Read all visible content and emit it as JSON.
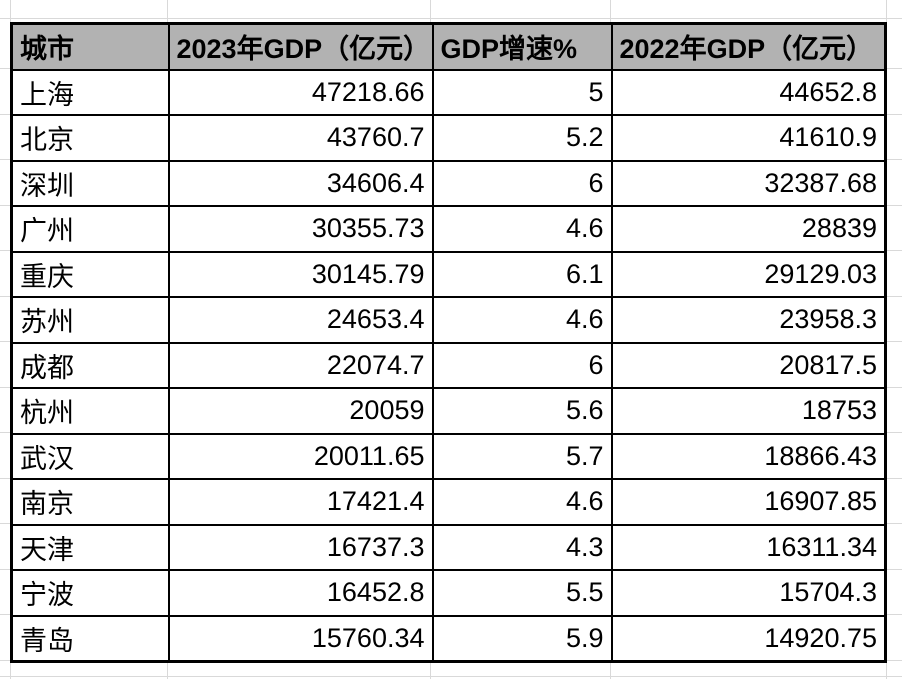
{
  "table": {
    "columns": [
      {
        "key": "city",
        "label": "城市"
      },
      {
        "key": "gdp2023",
        "label": "2023年GDP（亿元）"
      },
      {
        "key": "growth",
        "label": "GDP增速%"
      },
      {
        "key": "gdp2022",
        "label": "2022年GDP（亿元）"
      }
    ],
    "rows": [
      {
        "city": "上海",
        "gdp2023": "47218.66",
        "growth": "5",
        "gdp2022": "44652.8"
      },
      {
        "city": "北京",
        "gdp2023": "43760.7",
        "growth": "5.2",
        "gdp2022": "41610.9"
      },
      {
        "city": "深圳",
        "gdp2023": "34606.4",
        "growth": "6",
        "gdp2022": "32387.68"
      },
      {
        "city": "广州",
        "gdp2023": "30355.73",
        "growth": "4.6",
        "gdp2022": "28839"
      },
      {
        "city": "重庆",
        "gdp2023": "30145.79",
        "growth": "6.1",
        "gdp2022": "29129.03"
      },
      {
        "city": "苏州",
        "gdp2023": "24653.4",
        "growth": "4.6",
        "gdp2022": "23958.3"
      },
      {
        "city": "成都",
        "gdp2023": "22074.7",
        "growth": "6",
        "gdp2022": "20817.5"
      },
      {
        "city": "杭州",
        "gdp2023": "20059",
        "growth": "5.6",
        "gdp2022": "18753"
      },
      {
        "city": "武汉",
        "gdp2023": "20011.65",
        "growth": "5.7",
        "gdp2022": "18866.43"
      },
      {
        "city": "南京",
        "gdp2023": "17421.4",
        "growth": "4.6",
        "gdp2022": "16907.85"
      },
      {
        "city": "天津",
        "gdp2023": "16737.3",
        "growth": "4.3",
        "gdp2022": "16311.34"
      },
      {
        "city": "宁波",
        "gdp2023": "16452.8",
        "growth": "5.5",
        "gdp2022": "15704.3"
      },
      {
        "city": "青岛",
        "gdp2023": "15760.34",
        "growth": "5.9",
        "gdp2022": "14920.75"
      }
    ],
    "colors": {
      "header_bg": "#b2b2b2",
      "cell_border": "#000000",
      "gridline": "#d9d9d9",
      "text": "#000000"
    }
  }
}
